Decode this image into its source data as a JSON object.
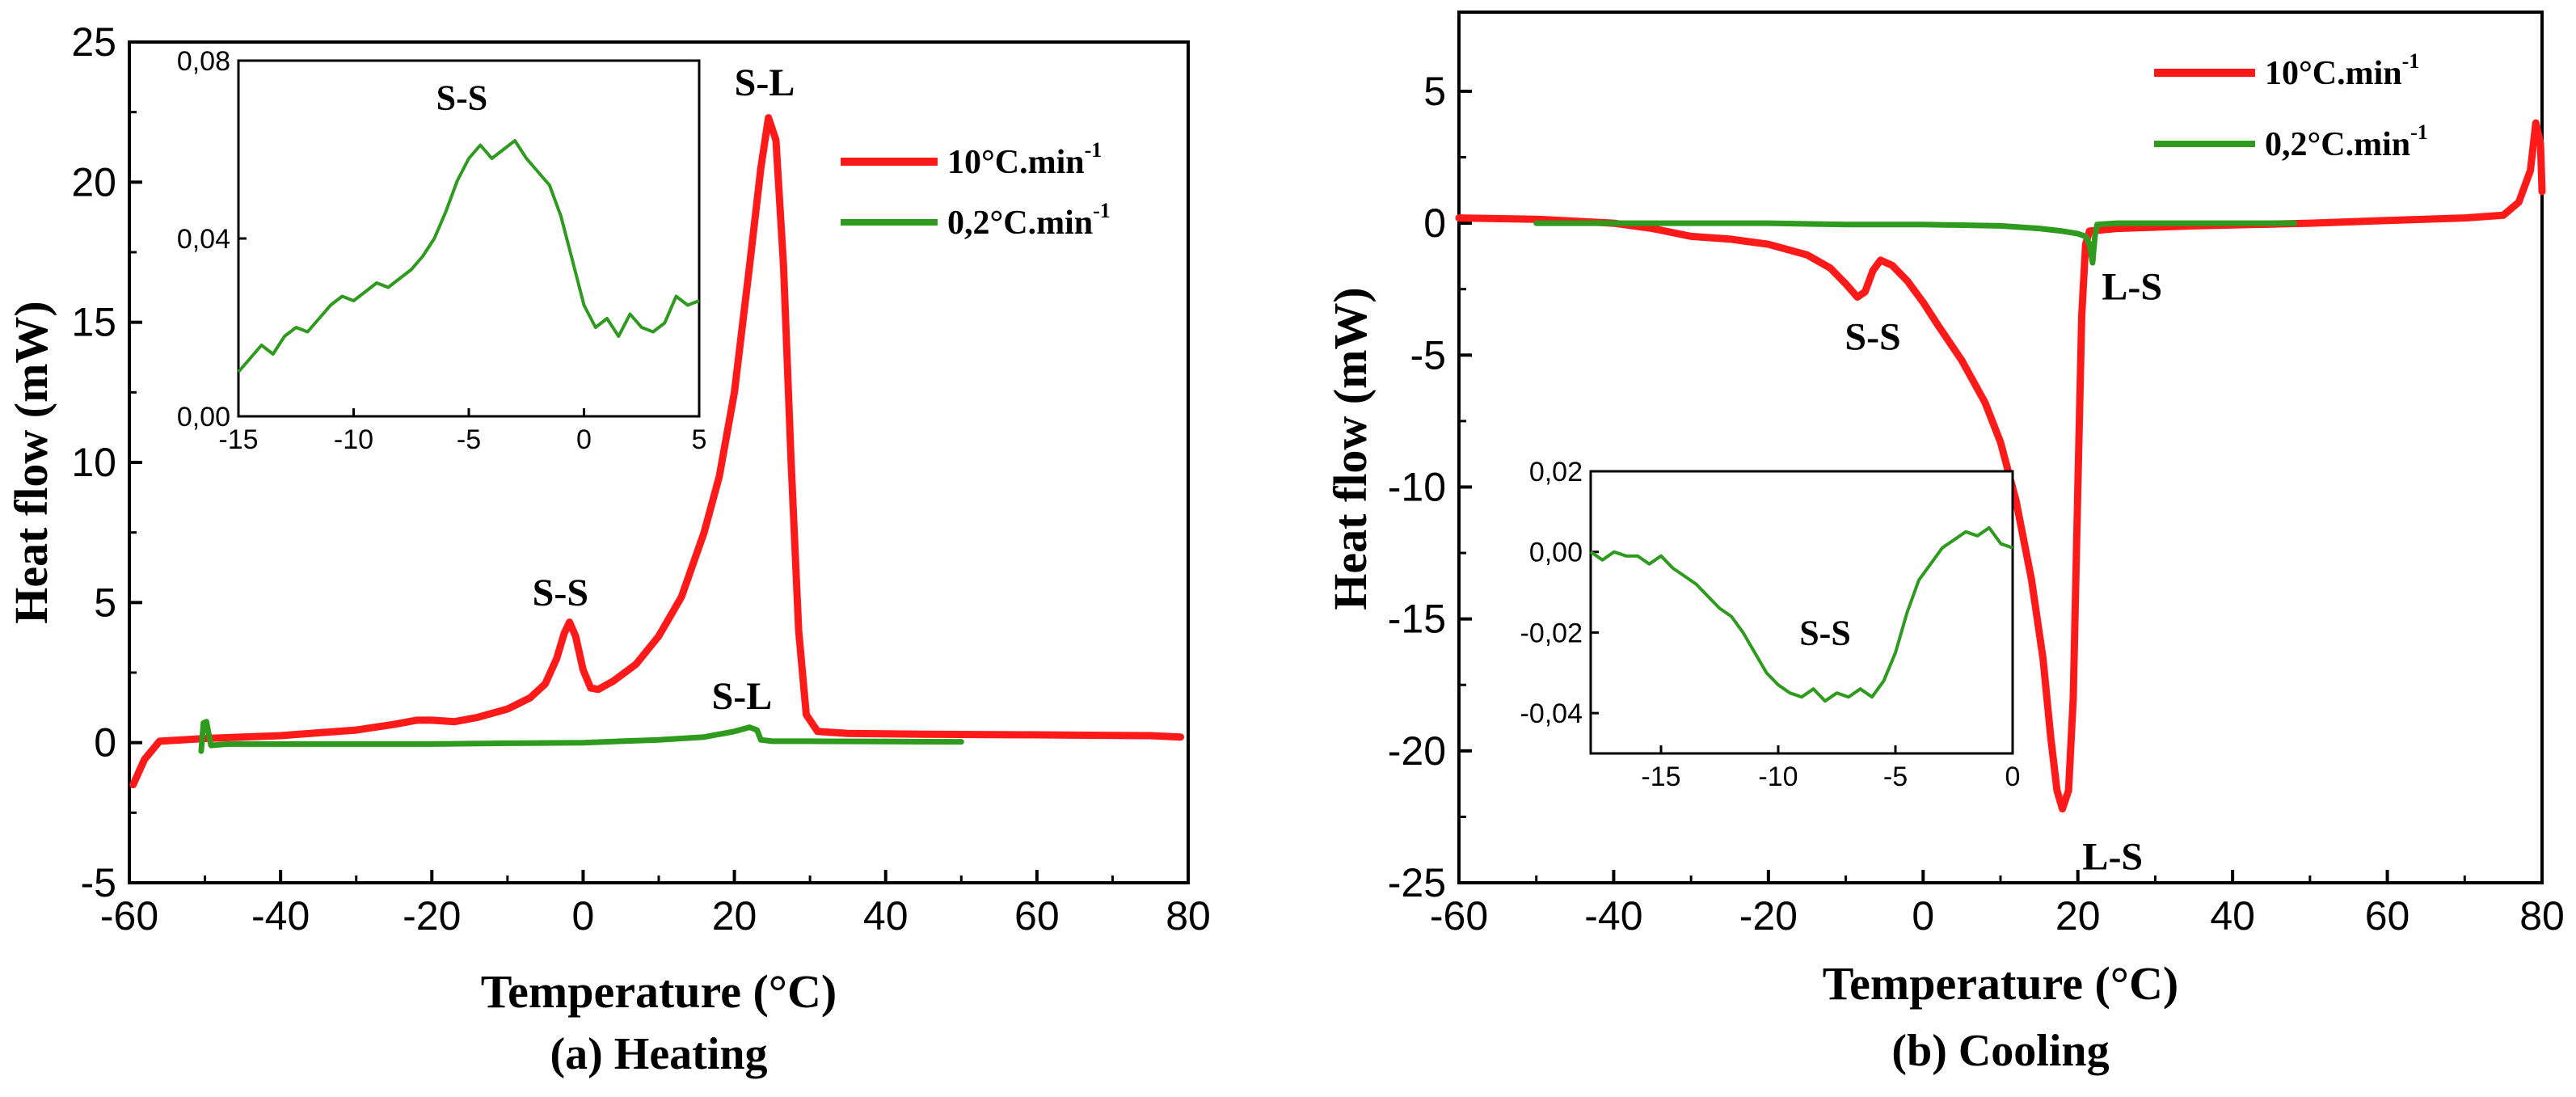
{
  "colors": {
    "fast": "#ff1a1a",
    "slow": "#2e9a1e",
    "axis": "#000000"
  },
  "chart_data": [
    {
      "type": "line",
      "id": "heating",
      "caption": "(a) Heating",
      "xlabel": "Temperature (°C)",
      "ylabel": "Heat flow (mW)",
      "xlim": [
        -60,
        80
      ],
      "ylim": [
        -5,
        25
      ],
      "xticks": [
        -60,
        -40,
        -20,
        0,
        20,
        40,
        60,
        80
      ],
      "yticks": [
        -5,
        0,
        5,
        10,
        15,
        20,
        25
      ],
      "legend_position": "upper-right",
      "series": [
        {
          "name": "10°C.min",
          "unit_sup": "-1",
          "color": "fast",
          "points": [
            [
              -59.5,
              -1.5
            ],
            [
              -58,
              -0.6
            ],
            [
              -56,
              0.05
            ],
            [
              -53,
              0.1
            ],
            [
              -50,
              0.15
            ],
            [
              -45,
              0.2
            ],
            [
              -40,
              0.25
            ],
            [
              -35,
              0.35
            ],
            [
              -30,
              0.45
            ],
            [
              -25,
              0.65
            ],
            [
              -22,
              0.8
            ],
            [
              -20,
              0.8
            ],
            [
              -17,
              0.75
            ],
            [
              -14,
              0.9
            ],
            [
              -10,
              1.2
            ],
            [
              -7,
              1.6
            ],
            [
              -5,
              2.1
            ],
            [
              -3.5,
              3.0
            ],
            [
              -2.5,
              3.9
            ],
            [
              -1.8,
              4.3
            ],
            [
              -1,
              3.8
            ],
            [
              0,
              2.6
            ],
            [
              1,
              1.95
            ],
            [
              2,
              1.9
            ],
            [
              4,
              2.2
            ],
            [
              7,
              2.8
            ],
            [
              10,
              3.8
            ],
            [
              13,
              5.2
            ],
            [
              16,
              7.5
            ],
            [
              18,
              9.5
            ],
            [
              20,
              12.5
            ],
            [
              22,
              17.0
            ],
            [
              23.5,
              20.5
            ],
            [
              24.5,
              22.3
            ],
            [
              25.5,
              21.5
            ],
            [
              26.5,
              17.0
            ],
            [
              27.5,
              10.0
            ],
            [
              28.5,
              4.0
            ],
            [
              29.5,
              1.0
            ],
            [
              31,
              0.4
            ],
            [
              35,
              0.33
            ],
            [
              45,
              0.3
            ],
            [
              60,
              0.28
            ],
            [
              75,
              0.25
            ],
            [
              79,
              0.2
            ]
          ]
        },
        {
          "name": "0,2°C.min",
          "unit_sup": "-1",
          "color": "slow",
          "points": [
            [
              -50.5,
              -0.3
            ],
            [
              -50.2,
              0.7
            ],
            [
              -49.8,
              0.75
            ],
            [
              -49.5,
              0.3
            ],
            [
              -49.2,
              -0.1
            ],
            [
              -47,
              -0.05
            ],
            [
              -40,
              -0.05
            ],
            [
              -20,
              -0.05
            ],
            [
              -10,
              -0.02
            ],
            [
              0,
              0.0
            ],
            [
              10,
              0.1
            ],
            [
              16,
              0.2
            ],
            [
              20,
              0.4
            ],
            [
              22,
              0.55
            ],
            [
              23,
              0.45
            ],
            [
              23.5,
              0.1
            ],
            [
              25,
              0.05
            ],
            [
              30,
              0.05
            ],
            [
              40,
              0.04
            ],
            [
              50,
              0.03
            ]
          ]
        }
      ],
      "annotations": [
        {
          "text": "S-S",
          "x": -3,
          "y": 4.9
        },
        {
          "text": "S-L",
          "x": 24,
          "y": 23.1
        },
        {
          "text": "S-L",
          "x": 21,
          "y": 1.2
        }
      ],
      "inset": {
        "xlim": [
          -15,
          5
        ],
        "ylim": [
          0.0,
          0.08
        ],
        "xticks": [
          -15,
          -10,
          -5,
          0,
          5
        ],
        "yticks": [
          0.0,
          0.04,
          0.08
        ],
        "ytick_labels": [
          "0,00",
          "0,04",
          "0,08"
        ],
        "annotation": {
          "text": "S-S",
          "x": -5.3,
          "y": 0.069
        },
        "series_color": "slow",
        "points": [
          [
            -15,
            0.01
          ],
          [
            -14.5,
            0.013
          ],
          [
            -14,
            0.016
          ],
          [
            -13.5,
            0.014
          ],
          [
            -13,
            0.018
          ],
          [
            -12.5,
            0.02
          ],
          [
            -12,
            0.019
          ],
          [
            -11.5,
            0.022
          ],
          [
            -11,
            0.025
          ],
          [
            -10.5,
            0.027
          ],
          [
            -10,
            0.026
          ],
          [
            -9.5,
            0.028
          ],
          [
            -9,
            0.03
          ],
          [
            -8.5,
            0.029
          ],
          [
            -8,
            0.031
          ],
          [
            -7.5,
            0.033
          ],
          [
            -7,
            0.036
          ],
          [
            -6.5,
            0.04
          ],
          [
            -6,
            0.046
          ],
          [
            -5.5,
            0.053
          ],
          [
            -5,
            0.058
          ],
          [
            -4.5,
            0.061
          ],
          [
            -4,
            0.058
          ],
          [
            -3.5,
            0.06
          ],
          [
            -3,
            0.062
          ],
          [
            -2.5,
            0.058
          ],
          [
            -2,
            0.055
          ],
          [
            -1.5,
            0.052
          ],
          [
            -1,
            0.045
          ],
          [
            -0.5,
            0.035
          ],
          [
            0,
            0.025
          ],
          [
            0.5,
            0.02
          ],
          [
            1,
            0.022
          ],
          [
            1.5,
            0.018
          ],
          [
            2,
            0.023
          ],
          [
            2.5,
            0.02
          ],
          [
            3,
            0.019
          ],
          [
            3.5,
            0.021
          ],
          [
            4,
            0.027
          ],
          [
            4.5,
            0.025
          ],
          [
            5,
            0.026
          ]
        ]
      }
    },
    {
      "type": "line",
      "id": "cooling",
      "caption": "(b) Cooling",
      "xlabel": "Temperature (°C)",
      "ylabel": "Heat flow (mW)",
      "xlim": [
        -60,
        80
      ],
      "ylim": [
        -25,
        8
      ],
      "xticks": [
        -60,
        -40,
        -20,
        0,
        20,
        40,
        60,
        80
      ],
      "yticks": [
        -25,
        -20,
        -15,
        -10,
        -5,
        0,
        5
      ],
      "legend_position": "upper-right",
      "series": [
        {
          "name": "10°C.min",
          "unit_sup": "-1",
          "color": "fast",
          "points": [
            [
              -60,
              0.2
            ],
            [
              -50,
              0.15
            ],
            [
              -40,
              0.0
            ],
            [
              -35,
              -0.2
            ],
            [
              -30,
              -0.5
            ],
            [
              -25,
              -0.6
            ],
            [
              -20,
              -0.8
            ],
            [
              -15,
              -1.2
            ],
            [
              -12,
              -1.7
            ],
            [
              -10,
              -2.3
            ],
            [
              -8.5,
              -2.8
            ],
            [
              -7.5,
              -2.6
            ],
            [
              -6.5,
              -1.8
            ],
            [
              -5.5,
              -1.4
            ],
            [
              -4,
              -1.6
            ],
            [
              -2,
              -2.2
            ],
            [
              0,
              -3.0
            ],
            [
              2,
              -3.9
            ],
            [
              5,
              -5.2
            ],
            [
              8,
              -6.8
            ],
            [
              10,
              -8.3
            ],
            [
              12,
              -10.5
            ],
            [
              14,
              -13.5
            ],
            [
              15.5,
              -16.5
            ],
            [
              16.5,
              -19.5
            ],
            [
              17.3,
              -21.5
            ],
            [
              18,
              -22.2
            ],
            [
              18.8,
              -21.5
            ],
            [
              19.4,
              -18.0
            ],
            [
              20,
              -10.0
            ],
            [
              20.5,
              -3.5
            ],
            [
              21,
              -0.8
            ],
            [
              21.5,
              -0.3
            ],
            [
              25,
              -0.2
            ],
            [
              35,
              -0.1
            ],
            [
              50,
              0.0
            ],
            [
              60,
              0.1
            ],
            [
              70,
              0.2
            ],
            [
              75,
              0.3
            ],
            [
              77,
              0.8
            ],
            [
              78.5,
              2.0
            ],
            [
              79.2,
              3.8
            ],
            [
              79.8,
              3.0
            ],
            [
              80,
              1.2
            ]
          ]
        },
        {
          "name": "0,2°C.min",
          "unit_sup": "-1",
          "color": "slow",
          "points": [
            [
              -50,
              0.0
            ],
            [
              -40,
              0.0
            ],
            [
              -20,
              0.0
            ],
            [
              -10,
              -0.05
            ],
            [
              0,
              -0.05
            ],
            [
              10,
              -0.1
            ],
            [
              15,
              -0.2
            ],
            [
              18,
              -0.3
            ],
            [
              20,
              -0.4
            ],
            [
              21,
              -0.5
            ],
            [
              21.5,
              -0.8
            ],
            [
              21.9,
              -1.5
            ],
            [
              22.2,
              -0.5
            ],
            [
              22.5,
              -0.05
            ],
            [
              25,
              0.0
            ],
            [
              35,
              0.0
            ],
            [
              48,
              0.0
            ]
          ]
        }
      ],
      "annotations": [
        {
          "text": "S-S",
          "x": -6.5,
          "y": -4.8
        },
        {
          "text": "L-S",
          "x": 27,
          "y": -2.9
        },
        {
          "text": "L-S",
          "x": 24.5,
          "y": -24.5
        }
      ],
      "inset": {
        "xlim": [
          -18,
          0
        ],
        "ylim": [
          -0.05,
          0.02
        ],
        "xticks": [
          -15,
          -10,
          -5,
          0
        ],
        "yticks": [
          -0.04,
          -0.02,
          0.0,
          0.02
        ],
        "ytick_labels": [
          "-0,04",
          "-0,02",
          "0,00",
          "0,02"
        ],
        "annotation": {
          "text": "S-S",
          "x": -8,
          "y": -0.023
        },
        "series_color": "slow",
        "points": [
          [
            -18,
            0.0
          ],
          [
            -17.5,
            -0.002
          ],
          [
            -17,
            0.0
          ],
          [
            -16.5,
            -0.001
          ],
          [
            -16,
            -0.001
          ],
          [
            -15.5,
            -0.003
          ],
          [
            -15,
            -0.001
          ],
          [
            -14.5,
            -0.004
          ],
          [
            -14,
            -0.006
          ],
          [
            -13.5,
            -0.008
          ],
          [
            -13,
            -0.011
          ],
          [
            -12.5,
            -0.014
          ],
          [
            -12,
            -0.016
          ],
          [
            -11.5,
            -0.02
          ],
          [
            -11,
            -0.025
          ],
          [
            -10.5,
            -0.03
          ],
          [
            -10,
            -0.033
          ],
          [
            -9.5,
            -0.035
          ],
          [
            -9,
            -0.036
          ],
          [
            -8.5,
            -0.034
          ],
          [
            -8,
            -0.037
          ],
          [
            -7.5,
            -0.035
          ],
          [
            -7,
            -0.036
          ],
          [
            -6.5,
            -0.034
          ],
          [
            -6,
            -0.036
          ],
          [
            -5.5,
            -0.032
          ],
          [
            -5,
            -0.025
          ],
          [
            -4.5,
            -0.015
          ],
          [
            -4,
            -0.007
          ],
          [
            -3.5,
            -0.003
          ],
          [
            -3,
            0.001
          ],
          [
            -2.5,
            0.003
          ],
          [
            -2,
            0.005
          ],
          [
            -1.5,
            0.004
          ],
          [
            -1,
            0.006
          ],
          [
            -0.5,
            0.002
          ],
          [
            0,
            0.001
          ]
        ]
      }
    }
  ]
}
